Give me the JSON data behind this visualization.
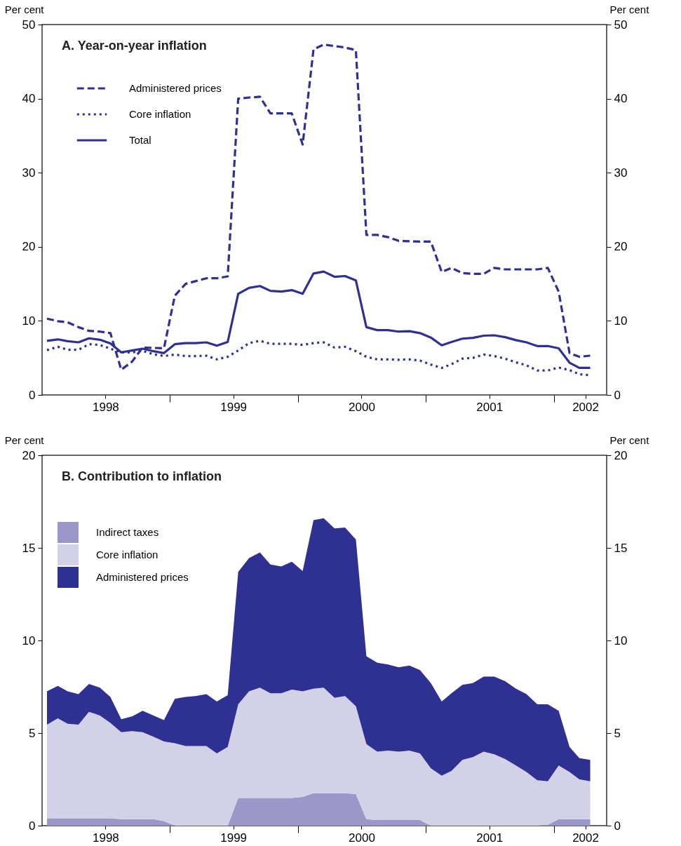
{
  "chart_data": [
    {
      "type": "line",
      "title": "A. Year-on-year inflation",
      "ylabel": "Per cent",
      "y2label": "Per cent",
      "legend": "top left",
      "x": [
        "1998-01-15",
        "1998-02-15",
        "1998-03-15",
        "1998-04-15",
        "1998-05-15",
        "1998-06-15",
        "1998-07-15",
        "1998-08-15",
        "1998-09-15",
        "1998-10-15",
        "1998-11-15",
        "1998-12-15",
        "1999-01-15",
        "1999-02-15",
        "1999-03-15",
        "1999-04-15",
        "1999-05-15",
        "1999-06-15",
        "1999-07-15",
        "1999-08-15",
        "1999-09-15",
        "1999-10-15",
        "1999-11-15",
        "1999-12-15",
        "2000-01-15",
        "2000-02-15",
        "2000-03-15",
        "2000-04-15",
        "2000-05-15",
        "2000-06-15",
        "2000-07-15",
        "2000-08-15",
        "2000-09-15",
        "2000-10-15",
        "2000-11-15",
        "2000-12-15",
        "2001-01-15",
        "2001-02-15",
        "2001-03-15",
        "2001-04-15",
        "2001-05-15",
        "2001-06-15",
        "2001-07-15",
        "2001-08-15",
        "2001-09-15",
        "2001-10-15",
        "2001-11-15",
        "2001-12-15",
        "2002-01-15",
        "2002-02-15",
        "2002-03-15",
        "2002-04-15"
      ],
      "xlim": [
        "1998-01-01",
        "2002-06-01"
      ],
      "xticks": [
        {
          "value": "1998-07-01",
          "label": "1998"
        },
        {
          "value": "1999-01-01",
          "label": null
        },
        {
          "value": "1999-07-01",
          "label": "1999"
        },
        {
          "value": "2000-01-01",
          "label": null
        },
        {
          "value": "2000-07-01",
          "label": "2000"
        },
        {
          "value": "2001-01-01",
          "label": null
        },
        {
          "value": "2001-07-01",
          "label": "2001"
        },
        {
          "value": "2002-01-01",
          "label": null
        },
        {
          "value": "2002-04-01",
          "label": "2002"
        }
      ],
      "ylim": [
        0,
        50
      ],
      "yticks": [
        0,
        10,
        20,
        30,
        40,
        50
      ],
      "y2lim": [
        0,
        50
      ],
      "y2ticks": [
        0,
        10,
        20,
        30,
        40,
        50
      ],
      "series": [
        {
          "name": "Administered prices",
          "color": "#2e3192",
          "line_style": "dashed",
          "values": [
            10.3,
            9.95,
            9.8,
            9.15,
            8.65,
            8.55,
            8.35,
            3.4,
            4.5,
            6.4,
            6.35,
            6.3,
            13.4,
            15.0,
            15.35,
            15.75,
            15.75,
            16.0,
            40.0,
            40.15,
            40.25,
            38.0,
            38.0,
            38.0,
            33.8,
            46.65,
            47.3,
            47.1,
            46.9,
            46.55,
            21.6,
            21.6,
            21.3,
            20.8,
            20.75,
            20.7,
            20.7,
            16.6,
            17.15,
            16.45,
            16.35,
            16.35,
            17.15,
            16.95,
            16.95,
            16.95,
            16.95,
            17.15,
            13.95,
            5.65,
            5.15,
            5.3
          ]
        },
        {
          "name": "Core inflation",
          "color": "#2e3192",
          "line_style": "dotted",
          "values": [
            6.05,
            6.5,
            6.1,
            6.1,
            6.85,
            6.75,
            6.25,
            5.75,
            5.75,
            5.95,
            5.5,
            5.25,
            5.45,
            5.25,
            5.25,
            5.3,
            4.8,
            5.15,
            6.0,
            7.0,
            7.3,
            6.9,
            6.9,
            6.9,
            6.75,
            7.0,
            7.1,
            6.4,
            6.5,
            5.9,
            5.15,
            4.8,
            4.8,
            4.75,
            4.8,
            4.65,
            4.1,
            3.65,
            4.15,
            4.9,
            5.0,
            5.45,
            5.25,
            4.9,
            4.4,
            4.0,
            3.3,
            3.3,
            3.7,
            3.35,
            2.8,
            2.65
          ]
        },
        {
          "name": "Total",
          "color": "#2e3192",
          "line_style": "solid",
          "values": [
            7.3,
            7.5,
            7.25,
            7.1,
            7.65,
            7.45,
            6.95,
            5.75,
            6.0,
            6.25,
            5.9,
            5.65,
            6.85,
            7.0,
            7.0,
            7.1,
            6.65,
            7.15,
            13.65,
            14.45,
            14.7,
            14.05,
            13.95,
            14.15,
            13.65,
            16.4,
            16.65,
            15.95,
            16.05,
            15.45,
            9.15,
            8.75,
            8.75,
            8.55,
            8.6,
            8.35,
            7.75,
            6.7,
            7.15,
            7.6,
            7.7,
            8.0,
            8.05,
            7.8,
            7.4,
            7.1,
            6.6,
            6.6,
            6.3,
            4.35,
            3.65,
            3.65
          ]
        }
      ]
    },
    {
      "type": "area",
      "stacked": true,
      "title": "B. Contribution to inflation",
      "ylabel": "Per cent",
      "y2label": "Per cent",
      "legend": "top left",
      "x": [
        "1998-01-15",
        "1998-02-15",
        "1998-03-15",
        "1998-04-15",
        "1998-05-15",
        "1998-06-15",
        "1998-07-15",
        "1998-08-15",
        "1998-09-15",
        "1998-10-15",
        "1998-11-15",
        "1998-12-15",
        "1999-01-15",
        "1999-02-15",
        "1999-03-15",
        "1999-04-15",
        "1999-05-15",
        "1999-06-15",
        "1999-07-15",
        "1999-08-15",
        "1999-09-15",
        "1999-10-15",
        "1999-11-15",
        "1999-12-15",
        "2000-01-15",
        "2000-02-15",
        "2000-03-15",
        "2000-04-15",
        "2000-05-15",
        "2000-06-15",
        "2000-07-15",
        "2000-08-15",
        "2000-09-15",
        "2000-10-15",
        "2000-11-15",
        "2000-12-15",
        "2001-01-15",
        "2001-02-15",
        "2001-03-15",
        "2001-04-15",
        "2001-05-15",
        "2001-06-15",
        "2001-07-15",
        "2001-08-15",
        "2001-09-15",
        "2001-10-15",
        "2001-11-15",
        "2001-12-15",
        "2002-01-15",
        "2002-02-15",
        "2002-03-15",
        "2002-04-15"
      ],
      "xlim": [
        "1998-01-01",
        "2002-06-01"
      ],
      "xticks": [
        {
          "value": "1998-07-01",
          "label": "1998"
        },
        {
          "value": "1999-01-01",
          "label": null
        },
        {
          "value": "1999-07-01",
          "label": "1999"
        },
        {
          "value": "2000-01-01",
          "label": null
        },
        {
          "value": "2000-07-01",
          "label": "2000"
        },
        {
          "value": "2001-01-01",
          "label": null
        },
        {
          "value": "2001-07-01",
          "label": "2001"
        },
        {
          "value": "2002-01-01",
          "label": null
        },
        {
          "value": "2002-04-01",
          "label": "2002"
        }
      ],
      "ylim": [
        0,
        20
      ],
      "yticks": [
        0,
        5,
        10,
        15,
        20
      ],
      "y2lim": [
        0,
        20
      ],
      "y2ticks": [
        0,
        5,
        10,
        15,
        20
      ],
      "series": [
        {
          "name": "Indirect taxes",
          "color": "#9b97c9",
          "values": [
            0.4,
            0.4,
            0.4,
            0.4,
            0.4,
            0.4,
            0.4,
            0.35,
            0.35,
            0.35,
            0.35,
            0.25,
            0,
            0,
            0,
            0,
            0,
            0,
            1.5,
            1.5,
            1.5,
            1.5,
            1.5,
            1.5,
            1.55,
            1.75,
            1.75,
            1.75,
            1.75,
            1.7,
            0.35,
            0.3,
            0.3,
            0.3,
            0.3,
            0.3,
            0,
            0,
            0,
            0,
            0,
            0,
            0,
            0,
            0,
            0,
            0,
            0.05,
            0.35,
            0.35,
            0.35,
            0.35
          ]
        },
        {
          "name": "Core inflation",
          "color": "#d3d1e7",
          "values": [
            5.05,
            5.4,
            5.1,
            5.05,
            5.75,
            5.55,
            5.15,
            4.7,
            4.75,
            4.7,
            4.45,
            4.3,
            4.45,
            4.3,
            4.3,
            4.3,
            3.9,
            4.25,
            5.05,
            5.75,
            5.95,
            5.65,
            5.65,
            5.85,
            5.7,
            5.65,
            5.7,
            5.15,
            5.25,
            4.75,
            4.05,
            3.7,
            3.75,
            3.7,
            3.75,
            3.6,
            3.1,
            2.7,
            2.95,
            3.55,
            3.7,
            4.0,
            3.85,
            3.6,
            3.25,
            2.9,
            2.45,
            2.35,
            2.9,
            2.55,
            2.15,
            2.05
          ]
        },
        {
          "name": "Administered prices",
          "color": "#2e3092",
          "values": [
            1.8,
            1.75,
            1.75,
            1.65,
            1.5,
            1.5,
            1.4,
            0.7,
            0.8,
            1.15,
            1.15,
            1.15,
            2.4,
            2.65,
            2.7,
            2.8,
            2.8,
            2.8,
            7.15,
            7.2,
            7.3,
            6.95,
            6.85,
            6.9,
            6.5,
            9.1,
            9.15,
            9.15,
            9.1,
            9.0,
            4.75,
            4.8,
            4.65,
            4.55,
            4.6,
            4.5,
            4.6,
            4.0,
            4.2,
            4.05,
            4.0,
            4.05,
            4.2,
            4.2,
            4.15,
            4.2,
            4.1,
            4.15,
            2.95,
            1.35,
            1.15,
            1.15
          ]
        }
      ]
    }
  ]
}
